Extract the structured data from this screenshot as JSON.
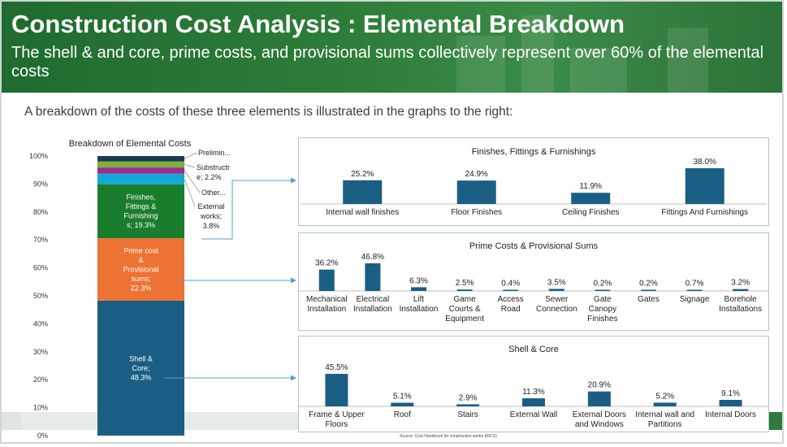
{
  "header": {
    "title": "Construction Cost Analysis : Elemental Breakdown",
    "subtitle": "The shell & and core, prime costs, and provisional sums collectively represent over 60% of the elemental costs"
  },
  "intro_text": "A breakdown of the costs of these three elements is illustrated in the graphs to the right:",
  "source_text": "Source: Cost Handbook for construction works (RICS)",
  "colors": {
    "shell": "#1b5e83",
    "prime": "#ee7233",
    "finishes": "#1a7d2e",
    "external": "#12a9d8",
    "other": "#9b2d8f",
    "substructure": "#7bb13b",
    "preliminaries": "#1c3657",
    "bar": "#1b5e83",
    "connector": "#5a9ccc"
  },
  "chart_data": [
    {
      "type": "stacked-bar",
      "title": "Breakdown of Elemental Costs",
      "ylim": [
        0,
        100
      ],
      "yticks": [
        "0%",
        "10%",
        "20%",
        "30%",
        "40%",
        "50%",
        "60%",
        "70%",
        "80%",
        "90%",
        "100%"
      ],
      "segments": [
        {
          "key": "shell",
          "label": "Shell & Core; 48.3%",
          "value": 48.3
        },
        {
          "key": "prime",
          "label": "Prime cost & Provisional sums; 22.3%",
          "value": 22.3
        },
        {
          "key": "finishes",
          "label": "Finishes, Fittings & Furnishings; 19.3%",
          "value": 19.3
        },
        {
          "key": "external",
          "label": "External works; 3.8%",
          "value": 3.8
        },
        {
          "key": "other",
          "label": "Other...",
          "value": 2.2
        },
        {
          "key": "substructure",
          "label": "Substructure; 2.2%",
          "value": 2.2
        },
        {
          "key": "preliminaries",
          "label": "Prelimin...",
          "value": 1.9
        }
      ],
      "inside_labels": {
        "shell": [
          "Shell &",
          "Core;",
          "48.3%"
        ],
        "prime": [
          "Prime cost",
          "&",
          "Provisional",
          "sums;",
          "22.3%"
        ],
        "finishes": [
          "Finishes,",
          "Fittings &",
          "Furnishing",
          "s; 19.3%"
        ]
      },
      "callouts": {
        "preliminaries": [
          "Prelimin..."
        ],
        "substructure": [
          "Substructr",
          "e; 2.2%"
        ],
        "other": [
          "Other..."
        ],
        "external": [
          "External",
          "works;",
          "3.8%"
        ]
      }
    },
    {
      "type": "bar",
      "title": "Finishes, Fittings & Furnishings",
      "categories": [
        [
          "Internal wall finishes"
        ],
        [
          "Floor Finishes"
        ],
        [
          "Ceiling Finishes"
        ],
        [
          "Fittings And Furnishings"
        ]
      ],
      "values": [
        25.2,
        24.9,
        11.9,
        38.0
      ],
      "value_labels": [
        "25.2%",
        "24.9%",
        "11.9%",
        "38.0%"
      ],
      "ylim": [
        0,
        38
      ]
    },
    {
      "type": "bar",
      "title": "Prime Costs & Provisional Sums",
      "categories": [
        [
          "Mechanical",
          "Installation"
        ],
        [
          "Electrical",
          "Installation"
        ],
        [
          "Lift",
          "Installation"
        ],
        [
          "Game",
          "Courts &",
          "Equipment"
        ],
        [
          "Access",
          "Road"
        ],
        [
          "Sewer",
          "Connection"
        ],
        [
          "Gate",
          "Canopy",
          "Finishes"
        ],
        [
          "Gates"
        ],
        [
          "Signage"
        ],
        [
          "Borehole",
          "Installations"
        ]
      ],
      "values": [
        36.2,
        46.8,
        6.3,
        2.5,
        0.4,
        3.5,
        0.2,
        0.2,
        0.7,
        3.2
      ],
      "value_labels": [
        "36.2%",
        "46.8%",
        "6.3%",
        "2.5%",
        "0.4%",
        "3.5%",
        "0.2%",
        "0.2%",
        "0.7%",
        "3.2%"
      ],
      "ylim": [
        0,
        46.8
      ]
    },
    {
      "type": "bar",
      "title": "Shell & Core",
      "categories": [
        [
          "Frame & Upper",
          "Floors"
        ],
        [
          "Roof"
        ],
        [
          "Stairs"
        ],
        [
          "External Wall"
        ],
        [
          "External Doors",
          "and Windows"
        ],
        [
          "Internal wall and",
          "Partitions"
        ],
        [
          "Internal Doors"
        ]
      ],
      "values": [
        45.5,
        5.1,
        2.9,
        11.3,
        20.9,
        5.2,
        9.1
      ],
      "value_labels": [
        "45.5%",
        "5.1%",
        "2.9%",
        "11.3%",
        "20.9%",
        "5.2%",
        "9.1%"
      ],
      "ylim": [
        0,
        45.5
      ]
    }
  ]
}
